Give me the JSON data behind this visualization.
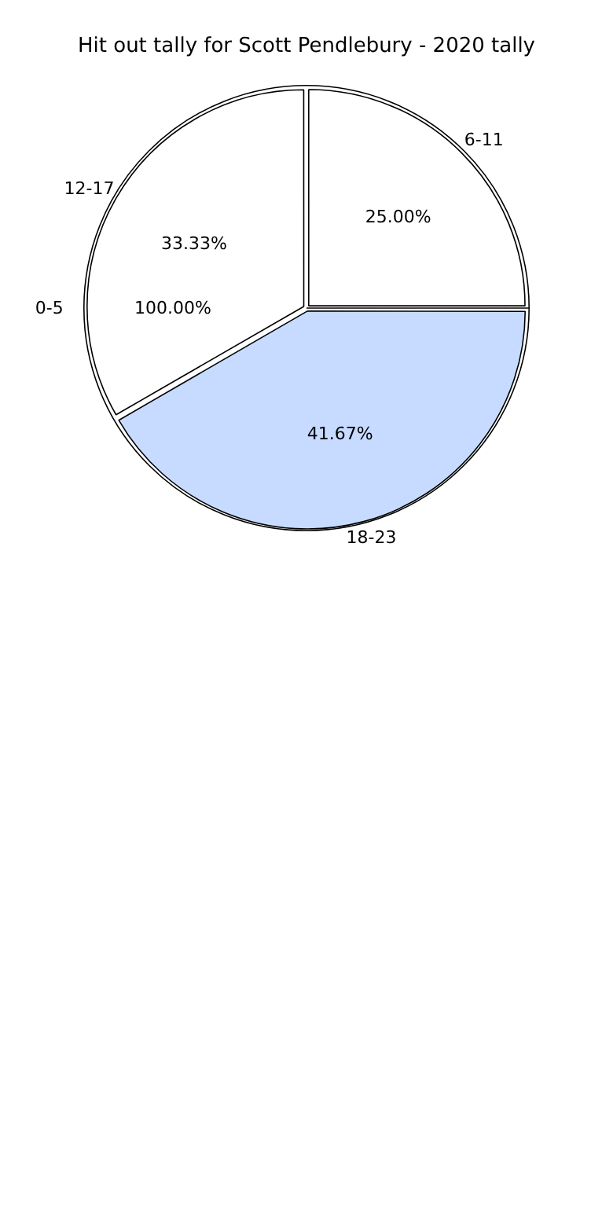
{
  "chart_data": [
    {
      "type": "pie",
      "title": "Hit out tally for Scott Pendlebury - 2020 tally",
      "categories": [
        "0-5"
      ],
      "values": [
        100
      ],
      "value_labels": [
        "100.00%"
      ],
      "colors": [
        "#ffffff"
      ]
    },
    {
      "type": "pie",
      "categories": [
        "6-11",
        "18-23",
        "12-17"
      ],
      "values": [
        25,
        41.67,
        33.33
      ],
      "value_labels": [
        "25.00%",
        "41.67%",
        "33.33%"
      ],
      "colors": [
        "#ffffff",
        "#c6dbff",
        "#ffffff"
      ]
    }
  ]
}
